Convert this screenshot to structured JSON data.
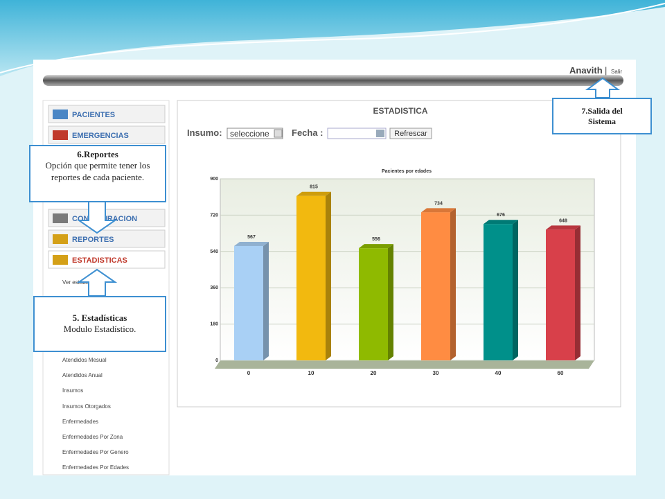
{
  "header": {
    "user": "Anavith",
    "separator": "|",
    "logout": "Salir"
  },
  "menu": {
    "items": [
      "PACIENTES",
      "EMERGENCIAS",
      "CONFIGURACION",
      "REPORTES",
      "ESTADISTICAS"
    ],
    "submenu": [
      "Ver estadisticas",
      "Atendidos Mesual",
      "Atendidos Anual",
      "Insumos",
      "Insumos Otorgados",
      "Enfermedades",
      "Enfermedades Por Zona",
      "Enfermedades Por Genero",
      "Enfermedades Por Edades"
    ]
  },
  "panel": {
    "title": "ESTADISTICA",
    "insumo_label": "Insumo:",
    "select": "seleccione",
    "fecha_label": "Fecha :",
    "button": "Refrescar"
  },
  "chart_data": {
    "type": "bar",
    "title": "Pacientes por edades",
    "categories": [
      "0",
      "10",
      "20",
      "30",
      "40",
      "60"
    ],
    "values": [
      567,
      815,
      556,
      734,
      676,
      648
    ],
    "colors": [
      "#a9d0f5",
      "#f2b90f",
      "#8fba00",
      "#ff8c42",
      "#00908a",
      "#d8404a"
    ],
    "ylim": [
      0,
      900
    ],
    "yticks": [
      0,
      180,
      360,
      540,
      720,
      900
    ],
    "grid": true
  },
  "callouts": [
    {
      "title": "6.Reportes",
      "text": "Opción que permite tener los reportes de cada paciente."
    },
    {
      "title": "5. Estadísticas",
      "text": "Modulo Estadístico."
    },
    {
      "title": "7.Salida del Sistema"
    }
  ]
}
